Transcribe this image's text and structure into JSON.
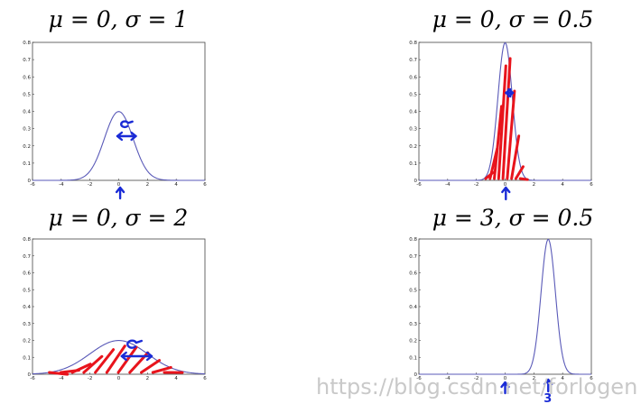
{
  "chart_data": [
    {
      "type": "line",
      "title": "μ = 0, σ = 1",
      "series": [
        {
          "mu": 0,
          "sigma": 1
        }
      ],
      "xlim": [
        -6,
        6
      ],
      "ylim": [
        0,
        0.8
      ],
      "xticks": [
        "-6",
        "-4",
        "-2",
        "0",
        "2",
        "4",
        "6"
      ],
      "yticks": [
        "0",
        "0.1",
        "0.2",
        "0.3",
        "0.4",
        "0.5",
        "0.6",
        "0.7",
        "0.8"
      ],
      "grid": false
    },
    {
      "type": "line",
      "title": "μ = 0, σ = 0.5",
      "series": [
        {
          "mu": 0,
          "sigma": 0.5
        }
      ],
      "xlim": [
        -6,
        6
      ],
      "ylim": [
        0,
        0.8
      ],
      "xticks": [
        "-6",
        "-4",
        "-2",
        "0",
        "2",
        "4",
        "6"
      ],
      "yticks": [
        "0",
        "0.1",
        "0.2",
        "0.3",
        "0.4",
        "0.5",
        "0.6",
        "0.7",
        "0.8"
      ],
      "grid": false
    },
    {
      "type": "line",
      "title": "μ = 0, σ = 2",
      "series": [
        {
          "mu": 0,
          "sigma": 2
        }
      ],
      "xlim": [
        -6,
        6
      ],
      "ylim": [
        0,
        0.8
      ],
      "xticks": [
        "-6",
        "-4",
        "-2",
        "0",
        "2",
        "4",
        "6"
      ],
      "yticks": [
        "0",
        "0.1",
        "0.2",
        "0.3",
        "0.4",
        "0.5",
        "0.6",
        "0.7",
        "0.8"
      ],
      "grid": false
    },
    {
      "type": "line",
      "title": "μ = 3, σ = 0.5",
      "series": [
        {
          "mu": 3,
          "sigma": 0.5
        }
      ],
      "xlim": [
        -6,
        6
      ],
      "ylim": [
        0,
        0.8
      ],
      "xticks": [
        "-6",
        "-4",
        "-2",
        "0",
        "2",
        "4",
        "6"
      ],
      "yticks": [
        "0",
        "0.1",
        "0.2",
        "0.3",
        "0.4",
        "0.5",
        "0.6",
        "0.7",
        "0.8"
      ],
      "grid": false
    }
  ],
  "annotations": {
    "handwritten_label": "3"
  },
  "colors": {
    "curve": "#5a5ab8",
    "hatch": "#e8141c",
    "ink": "#1a2bd6"
  },
  "watermark": "https://blog.csdn.net/forlogen"
}
